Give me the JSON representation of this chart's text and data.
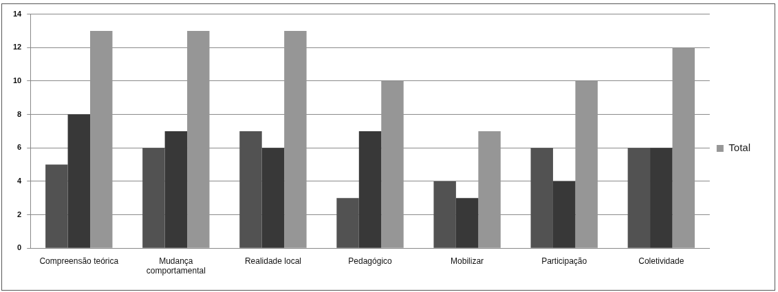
{
  "chart_data": {
    "type": "bar",
    "categories": [
      "Compreensão teórica",
      "Mudança comportamental",
      "Realidade local",
      "Pedagógico",
      "Mobilizar",
      "Participação",
      "Coletividade"
    ],
    "series": [
      {
        "color": "#525252",
        "values": [
          5,
          6,
          7,
          3,
          4,
          6,
          6
        ]
      },
      {
        "color": "#383838",
        "values": [
          8,
          7,
          6,
          7,
          3,
          4,
          6
        ]
      },
      {
        "name": "Total",
        "color": "#969696",
        "values": [
          13,
          13,
          13,
          10,
          7,
          10,
          12
        ]
      }
    ],
    "ylim": [
      0,
      14
    ],
    "yticks": [
      0,
      2,
      4,
      6,
      8,
      10,
      12,
      14
    ],
    "grid": "y",
    "legend": "right"
  }
}
